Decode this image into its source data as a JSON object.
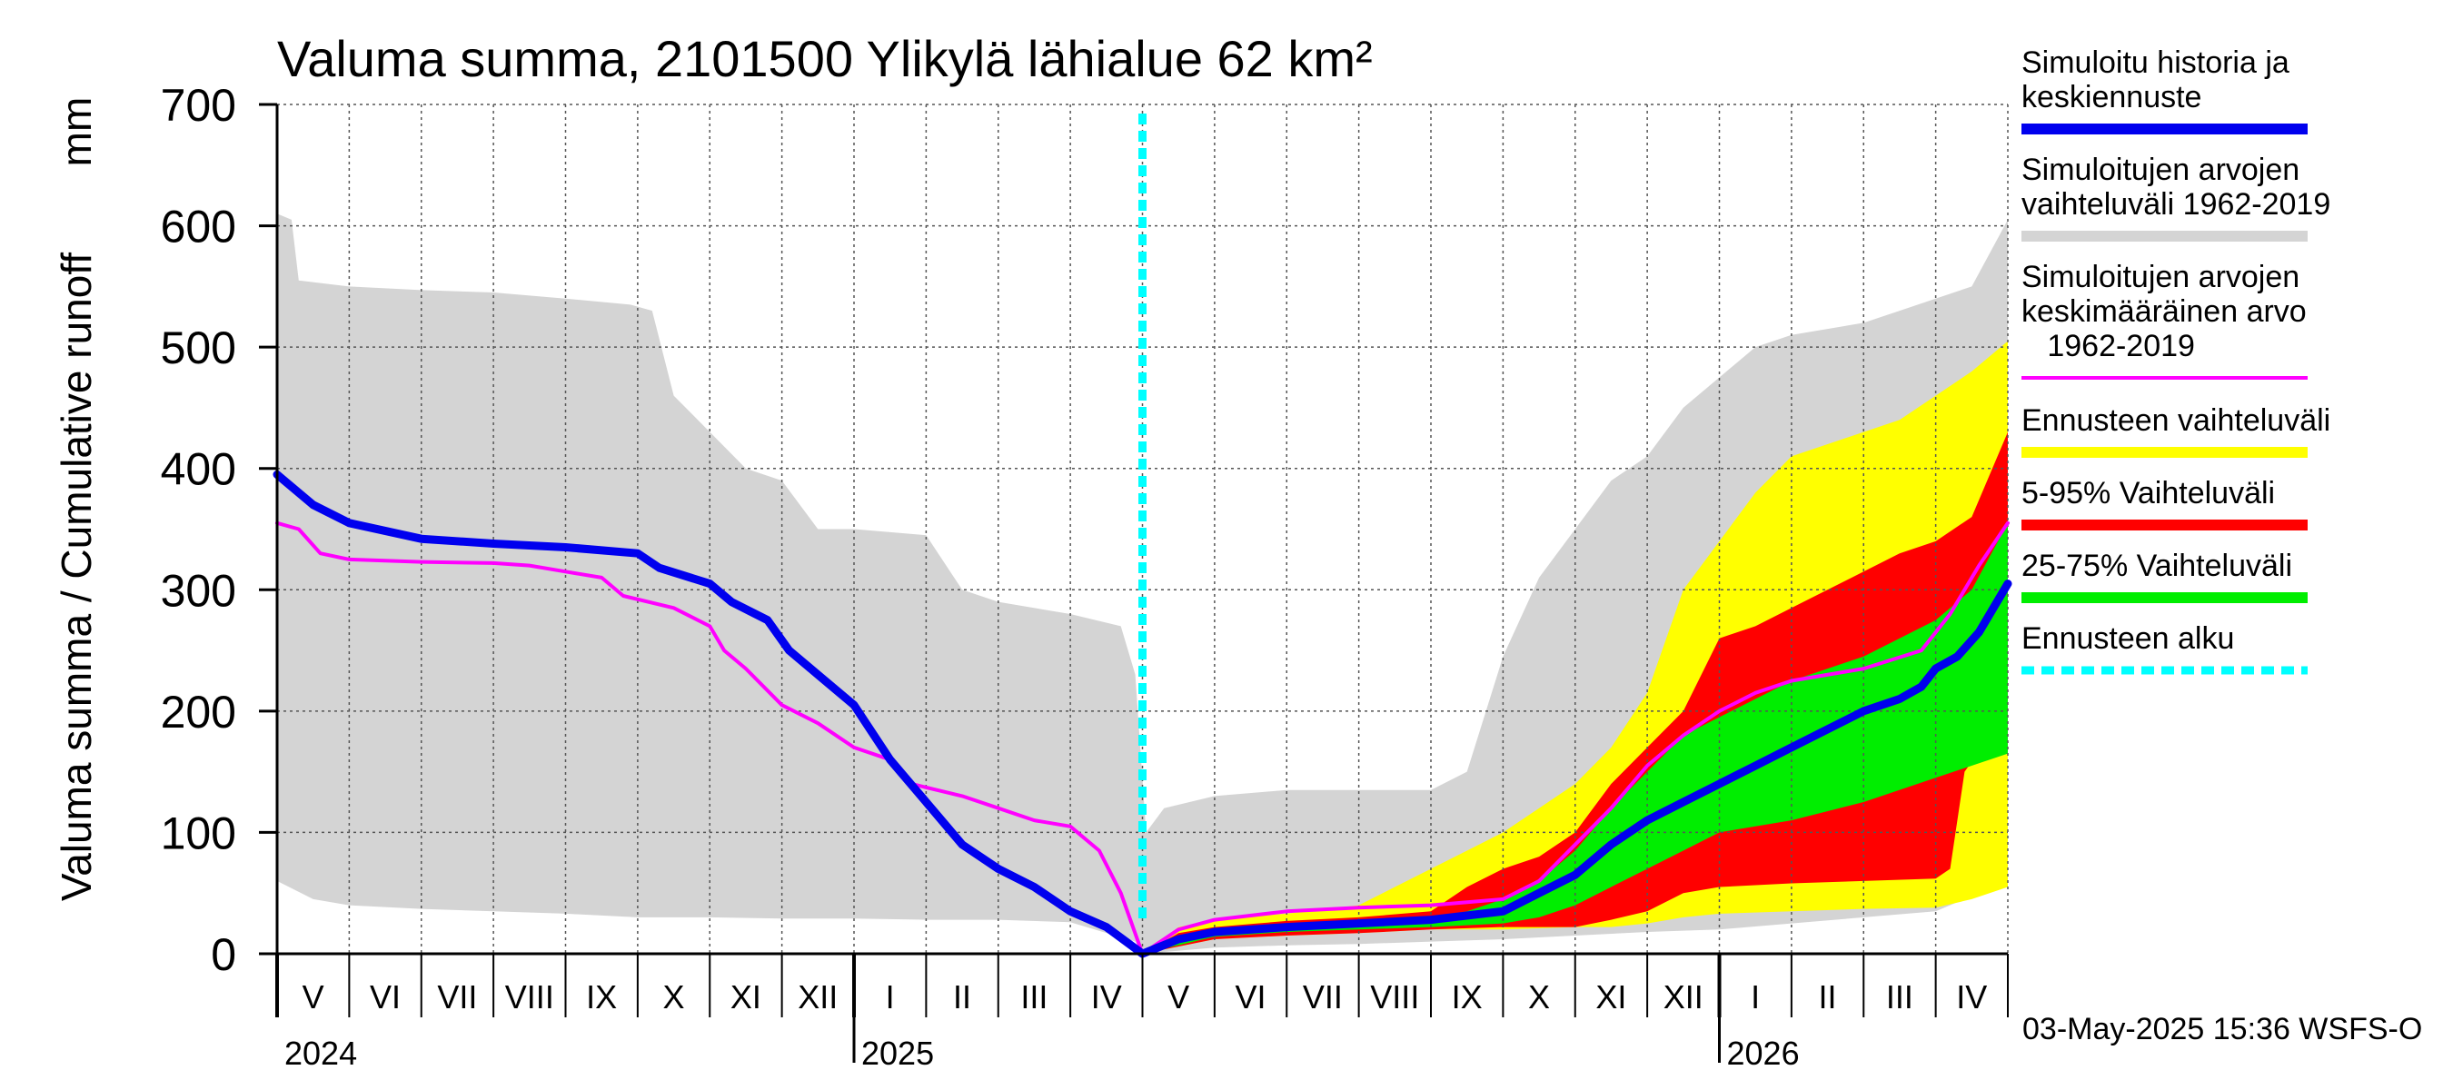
{
  "chart_data": {
    "type": "area",
    "title": "Valuma summa, 2101500 Ylikylä lähialue 62 km²",
    "ylabel": "Valuma summa / Cumulative runoff",
    "yunit": "mm",
    "ylim": [
      0,
      700
    ],
    "yticks": [
      "0",
      "100",
      "200",
      "300",
      "400",
      "500",
      "600",
      "700"
    ],
    "xlim": [
      0,
      24
    ],
    "month_labels": [
      "V",
      "VI",
      "VII",
      "VIII",
      "IX",
      "X",
      "XI",
      "XII",
      "I",
      "II",
      "III",
      "IV",
      "V",
      "VI",
      "VII",
      "VIII",
      "IX",
      "X",
      "XI",
      "XII",
      "I",
      "II",
      "III",
      "IV"
    ],
    "year_labels": [
      {
        "label": "2024",
        "month": 0
      },
      {
        "label": "2025",
        "month": 8
      },
      {
        "label": "2026",
        "month": 20
      }
    ],
    "forecast_start_month": 12,
    "footer": "03-May-2025 15:36 WSFS-O",
    "legend": [
      {
        "label": "Simuloitu historia ja\nkeskiennuste",
        "color": "#0000ee",
        "style": "line"
      },
      {
        "label": "Simuloitujen arvojen\nvaihteluväli 1962-2019",
        "color": "#d4d4d4",
        "style": "line"
      },
      {
        "label": "Simuloitujen arvojen\nkeskimääräinen arvo\n   1962-2019",
        "color": "#ff00ff",
        "style": "thin"
      },
      {
        "label": "Ennusteen vaihteluväli",
        "color": "#ffff00",
        "style": "line"
      },
      {
        "label": "5-95% Vaihteluväli",
        "color": "#ff0000",
        "style": "line"
      },
      {
        "label": "25-75% Vaihteluväli",
        "color": "#00ee00",
        "style": "line"
      },
      {
        "label": "Ennusteen alku",
        "color": "#00ffff",
        "style": "dashed"
      }
    ],
    "series": [
      {
        "name": "Simuloitujen arvojen vaihteluväli 1962-2019",
        "kind": "band",
        "color": "#d4d4d4",
        "upper": [
          [
            0,
            610
          ],
          [
            0.2,
            605
          ],
          [
            0.3,
            555
          ],
          [
            1,
            550
          ],
          [
            2,
            547
          ],
          [
            3,
            545
          ],
          [
            4,
            540
          ],
          [
            4.9,
            535
          ],
          [
            5.2,
            530
          ],
          [
            5.5,
            460
          ],
          [
            6,
            430
          ],
          [
            6.5,
            400
          ],
          [
            7,
            390
          ],
          [
            7.5,
            350
          ],
          [
            8,
            350
          ],
          [
            9,
            345
          ],
          [
            9.5,
            300
          ],
          [
            10,
            290
          ],
          [
            11,
            280
          ],
          [
            11.7,
            270
          ],
          [
            11.9,
            230
          ],
          [
            12.05,
            100
          ],
          [
            12.3,
            120
          ],
          [
            13,
            130
          ],
          [
            14,
            135
          ],
          [
            15,
            135
          ],
          [
            16,
            135
          ],
          [
            16.5,
            150
          ],
          [
            17,
            245
          ],
          [
            17.5,
            310
          ],
          [
            18,
            350
          ],
          [
            18.5,
            390
          ],
          [
            19,
            410
          ],
          [
            19.5,
            450
          ],
          [
            20,
            475
          ],
          [
            20.5,
            500
          ],
          [
            21,
            510
          ],
          [
            21.5,
            515
          ],
          [
            22,
            520
          ],
          [
            22.5,
            530
          ],
          [
            23,
            540
          ],
          [
            23.5,
            550
          ],
          [
            24,
            605
          ]
        ],
        "lower": [
          [
            0,
            60
          ],
          [
            0.5,
            45
          ],
          [
            1,
            40
          ],
          [
            2,
            37
          ],
          [
            3,
            35
          ],
          [
            4,
            33
          ],
          [
            5,
            30
          ],
          [
            6,
            30
          ],
          [
            7,
            29
          ],
          [
            8,
            29
          ],
          [
            9,
            28
          ],
          [
            10,
            28
          ],
          [
            11,
            26
          ],
          [
            11.9,
            10
          ],
          [
            12,
            0
          ],
          [
            13,
            5
          ],
          [
            14,
            7
          ],
          [
            15,
            8
          ],
          [
            16,
            10
          ],
          [
            17,
            12
          ],
          [
            18,
            15
          ],
          [
            19,
            18
          ],
          [
            20,
            20
          ],
          [
            21,
            25
          ],
          [
            22,
            30
          ],
          [
            23,
            35
          ],
          [
            24,
            60
          ]
        ]
      },
      {
        "name": "Ennusteen vaihteluväli",
        "kind": "band",
        "color": "#ffff00",
        "upper": [
          [
            12,
            0
          ],
          [
            12.5,
            22
          ],
          [
            13,
            28
          ],
          [
            14,
            33
          ],
          [
            15,
            40
          ],
          [
            15.5,
            55
          ],
          [
            16,
            70
          ],
          [
            16.5,
            85
          ],
          [
            17,
            100
          ],
          [
            17.5,
            120
          ],
          [
            18,
            140
          ],
          [
            18.5,
            170
          ],
          [
            19,
            215
          ],
          [
            19.5,
            300
          ],
          [
            20,
            340
          ],
          [
            20.5,
            380
          ],
          [
            21,
            410
          ],
          [
            21.5,
            420
          ],
          [
            22,
            430
          ],
          [
            22.5,
            440
          ],
          [
            23,
            460
          ],
          [
            23.5,
            480
          ],
          [
            24,
            505
          ]
        ],
        "lower": [
          [
            12,
            0
          ],
          [
            13,
            12
          ],
          [
            14,
            15
          ],
          [
            15,
            17
          ],
          [
            16,
            20
          ],
          [
            17,
            20
          ],
          [
            18,
            22
          ],
          [
            18.5,
            22
          ],
          [
            19,
            25
          ],
          [
            19.5,
            30
          ],
          [
            20,
            33
          ],
          [
            21,
            35
          ],
          [
            22,
            37
          ],
          [
            23,
            38
          ],
          [
            23.5,
            45
          ],
          [
            24,
            55
          ]
        ]
      },
      {
        "name": "5-95% Vaihteluväli",
        "kind": "band",
        "color": "#ff0000",
        "upper": [
          [
            12,
            0
          ],
          [
            12.5,
            17
          ],
          [
            13,
            22
          ],
          [
            14,
            27
          ],
          [
            15,
            30
          ],
          [
            16,
            35
          ],
          [
            16.5,
            55
          ],
          [
            17,
            70
          ],
          [
            17.5,
            80
          ],
          [
            18,
            100
          ],
          [
            18.5,
            140
          ],
          [
            19,
            170
          ],
          [
            19.5,
            200
          ],
          [
            20,
            260
          ],
          [
            20.5,
            270
          ],
          [
            21,
            285
          ],
          [
            21.5,
            300
          ],
          [
            22,
            315
          ],
          [
            22.5,
            330
          ],
          [
            23,
            340
          ],
          [
            23.5,
            360
          ],
          [
            24,
            430
          ]
        ],
        "lower": [
          [
            12,
            0
          ],
          [
            13,
            12
          ],
          [
            14,
            15
          ],
          [
            15,
            17
          ],
          [
            16,
            20
          ],
          [
            17,
            22
          ],
          [
            18,
            22
          ],
          [
            18.5,
            28
          ],
          [
            19,
            35
          ],
          [
            19.5,
            50
          ],
          [
            20,
            55
          ],
          [
            21,
            58
          ],
          [
            22,
            60
          ],
          [
            23,
            62
          ],
          [
            23.2,
            70
          ],
          [
            23.4,
            150
          ],
          [
            23.7,
            175
          ],
          [
            24,
            215
          ]
        ]
      },
      {
        "name": "25-75% Vaihteluväli",
        "kind": "band",
        "color": "#00ee00",
        "upper": [
          [
            12,
            0
          ],
          [
            12.5,
            15
          ],
          [
            13,
            20
          ],
          [
            14,
            25
          ],
          [
            15,
            27
          ],
          [
            16,
            30
          ],
          [
            16.5,
            35
          ],
          [
            17,
            45
          ],
          [
            17.5,
            60
          ],
          [
            18,
            85
          ],
          [
            18.5,
            120
          ],
          [
            19,
            150
          ],
          [
            19.5,
            180
          ],
          [
            20,
            195
          ],
          [
            20.5,
            210
          ],
          [
            21,
            225
          ],
          [
            21.5,
            235
          ],
          [
            22,
            245
          ],
          [
            22.5,
            260
          ],
          [
            23,
            275
          ],
          [
            23.5,
            300
          ],
          [
            24,
            355
          ]
        ],
        "lower": [
          [
            12,
            0
          ],
          [
            13,
            14
          ],
          [
            14,
            18
          ],
          [
            15,
            20
          ],
          [
            16,
            22
          ],
          [
            17,
            25
          ],
          [
            17.5,
            30
          ],
          [
            18,
            40
          ],
          [
            18.5,
            55
          ],
          [
            19,
            70
          ],
          [
            19.5,
            85
          ],
          [
            20,
            100
          ],
          [
            21,
            110
          ],
          [
            22,
            125
          ],
          [
            23,
            145
          ],
          [
            24,
            165
          ]
        ]
      },
      {
        "name": "Simuloitujen arvojen keskimääräinen arvo 1962-2019",
        "kind": "line",
        "color": "#ff00ff",
        "width": 4,
        "points": [
          [
            0,
            355
          ],
          [
            0.3,
            350
          ],
          [
            0.6,
            330
          ],
          [
            1,
            325
          ],
          [
            2,
            323
          ],
          [
            3,
            322
          ],
          [
            3.5,
            320
          ],
          [
            4,
            315
          ],
          [
            4.5,
            310
          ],
          [
            4.8,
            295
          ],
          [
            5.5,
            285
          ],
          [
            6,
            270
          ],
          [
            6.2,
            250
          ],
          [
            6.5,
            235
          ],
          [
            7,
            205
          ],
          [
            7.5,
            190
          ],
          [
            8,
            170
          ],
          [
            8.5,
            160
          ],
          [
            8.8,
            140
          ],
          [
            9.5,
            130
          ],
          [
            10,
            120
          ],
          [
            10.5,
            110
          ],
          [
            11,
            105
          ],
          [
            11.4,
            85
          ],
          [
            11.7,
            50
          ],
          [
            12,
            0
          ],
          [
            12.5,
            20
          ],
          [
            13,
            28
          ],
          [
            14,
            35
          ],
          [
            15,
            38
          ],
          [
            16,
            40
          ],
          [
            17,
            45
          ],
          [
            17.5,
            60
          ],
          [
            18,
            90
          ],
          [
            18.5,
            120
          ],
          [
            19,
            155
          ],
          [
            19.5,
            180
          ],
          [
            20,
            200
          ],
          [
            20.5,
            215
          ],
          [
            21,
            225
          ],
          [
            22,
            235
          ],
          [
            22.8,
            250
          ],
          [
            23.2,
            280
          ],
          [
            23.6,
            320
          ],
          [
            24,
            355
          ]
        ]
      },
      {
        "name": "Simuloitu historia ja keskiennuste",
        "kind": "line",
        "color": "#0000ee",
        "width": 9,
        "points": [
          [
            0,
            395
          ],
          [
            0.5,
            370
          ],
          [
            1,
            355
          ],
          [
            2,
            342
          ],
          [
            3,
            338
          ],
          [
            4,
            335
          ],
          [
            5,
            330
          ],
          [
            5.3,
            318
          ],
          [
            6,
            305
          ],
          [
            6.3,
            290
          ],
          [
            6.8,
            275
          ],
          [
            7.1,
            250
          ],
          [
            7.5,
            230
          ],
          [
            8,
            205
          ],
          [
            8.5,
            160
          ],
          [
            9,
            125
          ],
          [
            9.5,
            90
          ],
          [
            10,
            70
          ],
          [
            10.5,
            55
          ],
          [
            11,
            35
          ],
          [
            11.5,
            22
          ],
          [
            12,
            0
          ],
          [
            12.5,
            12
          ],
          [
            13,
            18
          ],
          [
            14,
            22
          ],
          [
            15,
            25
          ],
          [
            16,
            28
          ],
          [
            17,
            35
          ],
          [
            17.5,
            50
          ],
          [
            18,
            65
          ],
          [
            18.5,
            90
          ],
          [
            19,
            110
          ],
          [
            19.5,
            125
          ],
          [
            20,
            140
          ],
          [
            20.5,
            155
          ],
          [
            21,
            170
          ],
          [
            21.5,
            185
          ],
          [
            22,
            200
          ],
          [
            22.5,
            210
          ],
          [
            22.8,
            220
          ],
          [
            23,
            235
          ],
          [
            23.3,
            245
          ],
          [
            23.6,
            265
          ],
          [
            24,
            305
          ]
        ]
      }
    ]
  }
}
